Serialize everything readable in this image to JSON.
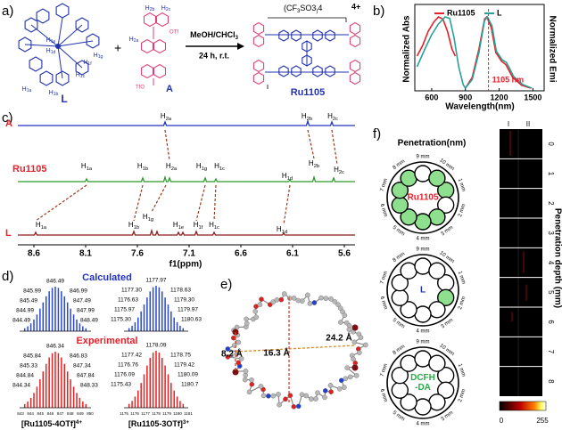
{
  "figure": {
    "a": {
      "label": "a)",
      "L": {
        "name": "L",
        "protons": [
          "H1e",
          "H1d",
          "H1g",
          "H1f",
          "H1c",
          "H1a",
          "H1b"
        ]
      },
      "plus": "+",
      "A": {
        "name": "A",
        "protons": [
          "H2b",
          "H2c",
          "H2a"
        ],
        "groups": [
          "OTf",
          "TfO"
        ]
      },
      "conditions": [
        "MeOH/CHCl3",
        "24 h, r.t."
      ],
      "product": {
        "name": "Ru1105",
        "counterion": "(CF3SO3)4",
        "charge": "4+"
      }
    },
    "b": {
      "label": "b)",
      "legend": [
        "Ru1105",
        "L"
      ],
      "y_left": "Normalized Abs",
      "y_right": "Normalized Emi",
      "x_label": "Wavelength(nm)",
      "x_ticks": [
        "600",
        "900",
        "1200",
        "1500"
      ],
      "annotation": "1105 nm"
    },
    "c": {
      "label": "c)",
      "traces": [
        {
          "name": "A",
          "protons": [
            "H2a",
            "H2b",
            "H2c"
          ]
        },
        {
          "name": "Ru1105",
          "protons": [
            "H1a",
            "H1b",
            "H2a",
            "H1g",
            "H1c",
            "H1d",
            "H2b",
            "H2c"
          ]
        },
        {
          "name": "L",
          "protons": [
            "H1a",
            "H1b",
            "H1g",
            "H1e",
            "H1f",
            "H1c",
            "H1d"
          ]
        }
      ],
      "x_ticks": [
        "8.6",
        "8.1",
        "7.6",
        "7.1",
        "6.6",
        "6.1",
        "5.6"
      ],
      "x_label": "f1(ppm)"
    },
    "d": {
      "label": "d)",
      "calculated": "Calculated",
      "experimental": "Experimental",
      "clusters": [
        {
          "ion": "[Ru1105-4OTf]4+",
          "calculated": [
            "846.49",
            "845.99",
            "846.99",
            "845.49",
            "847.49",
            "844.99",
            "847.99",
            "844.49",
            "848.49"
          ],
          "experimental": [
            "846.34",
            "845.84",
            "846.83",
            "845.33",
            "847.34",
            "844.84",
            "847.84",
            "844.34",
            "848.33"
          ],
          "axis": [
            "843",
            "844",
            "845",
            "846",
            "847",
            "848",
            "849",
            "850"
          ]
        },
        {
          "ion": "[Ru1105-3OTf]3+",
          "calculated": [
            "1177.97",
            "1177.30",
            "1178.63",
            "1176.63",
            "1179.30",
            "1175.97",
            "1179.97",
            "1175.30",
            "1180.63"
          ],
          "experimental": [
            "1178.09",
            "1177.42",
            "1178.75",
            "1176.76",
            "1179.42",
            "1176.09",
            "1180.09",
            "1175.43",
            "1180.7"
          ],
          "axis": [
            "1175",
            "1176",
            "1177",
            "1178",
            "1179",
            "1180",
            "1181"
          ]
        }
      ]
    },
    "e": {
      "label": "e)",
      "distances": [
        "8.2 Å",
        "16.3 Å",
        "24.2 Å"
      ]
    },
    "f": {
      "label": "f)",
      "title": "Penetration(nm)",
      "plates": [
        {
          "name": [
            "Ru1105"
          ],
          "wells": [
            "1 mm",
            "2 mm",
            "3 mm",
            "4 mm",
            "5 mm",
            "6 mm",
            "7 mm",
            "8 mm",
            "9 mm",
            "10 mm"
          ]
        },
        {
          "name": [
            "L"
          ],
          "wells": [
            "1 mm",
            "2 mm",
            "3 mm",
            "4 mm",
            "5 mm",
            "6 mm",
            "7 mm",
            "8 mm",
            "9 mm",
            "10 mm"
          ]
        },
        {
          "name": [
            "DCFH",
            "-DA"
          ],
          "wells": [
            "1 mm",
            "2 mm",
            "3 mm",
            "4 mm",
            "5 mm",
            "6 mm",
            "7 mm",
            "8 mm",
            "9 mm",
            "10 mm"
          ]
        }
      ],
      "columns": [
        "I",
        "II"
      ],
      "rows": [
        "0",
        "1",
        "2",
        "3",
        "4",
        "5",
        "6",
        "7",
        "8"
      ],
      "axis_title": "Penetration depth (mm)",
      "colorbar": [
        "0",
        "255"
      ]
    }
  }
}
